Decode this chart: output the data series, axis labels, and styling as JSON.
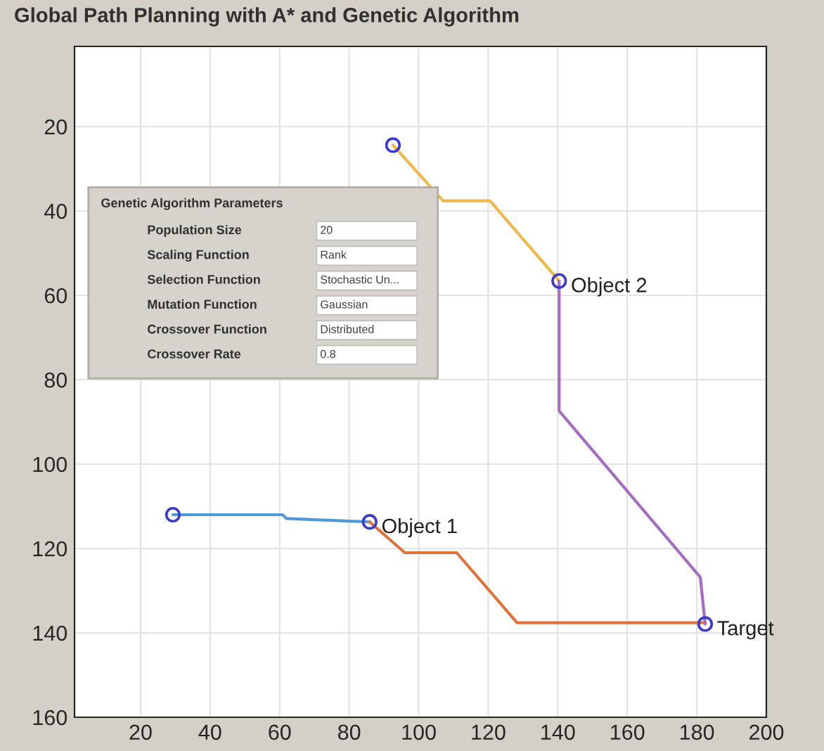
{
  "chart_data": {
    "type": "line",
    "title": "Global Path Planning with A* and Genetic Algorithm",
    "xlim": [
      1,
      200
    ],
    "xticks": [
      20,
      40,
      60,
      80,
      100,
      120,
      140,
      160,
      180,
      200
    ],
    "ylim": [
      160,
      1
    ],
    "yticks": [
      20,
      40,
      60,
      80,
      100,
      120,
      140,
      160
    ],
    "grid": true,
    "line_style": "solid",
    "series": [
      {
        "color": "#4f9ad6",
        "x": [
          29.3,
          60.8,
          62,
          85.9
        ],
        "values": [
          112,
          112,
          112.9,
          113.7
        ]
      },
      {
        "color": "#e0733a",
        "x": [
          85.9,
          96,
          110.9,
          128.3,
          182.4
        ],
        "values": [
          113.7,
          121,
          121,
          137.6,
          137.6
        ]
      },
      {
        "color": "#f0b84a",
        "x": [
          92.6,
          107,
          120.5,
          140.4
        ],
        "values": [
          24.4,
          37.6,
          37.6,
          56.6
        ]
      },
      {
        "color": "#a56cc1",
        "x": [
          140.4,
          140.4,
          181,
          182.4
        ],
        "values": [
          56.6,
          87.4,
          126.8,
          137.9
        ]
      },
      {
        "type": "scatter",
        "color": "#3a3ad0",
        "marker": "circle",
        "x": [
          29.3,
          85.9,
          92.6,
          140.4,
          182.4
        ],
        "values": [
          112,
          113.7,
          24.4,
          56.6,
          137.9
        ]
      }
    ],
    "annotations": [
      {
        "text": "Object 1",
        "x": 85.9,
        "y": 113.7
      },
      {
        "text": "Object 2",
        "x": 140.4,
        "y": 56.6
      },
      {
        "text": "Target",
        "x": 182.4,
        "y": 137.9
      },
      "Genetic Algorithm Parameters",
      "Population Size",
      "20",
      "Scaling Function",
      "Rank",
      "Selection Function",
      "Stochastic Un...",
      "Mutation Function",
      "Gaussian",
      "Crossover Function",
      "Distributed",
      "Crossover Rate",
      "0.8"
    ]
  }
}
